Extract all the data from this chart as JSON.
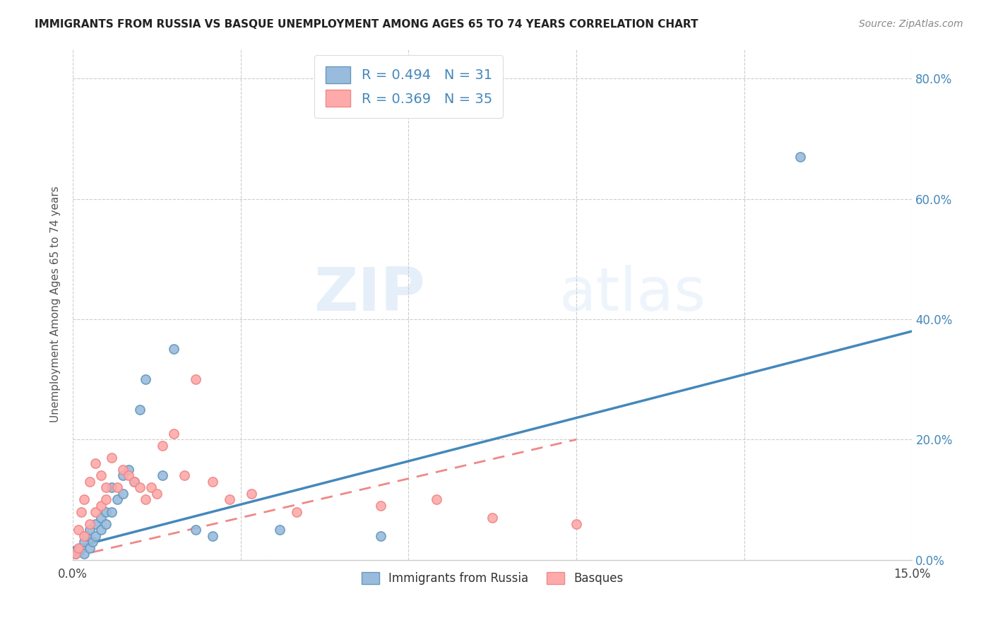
{
  "title": "IMMIGRANTS FROM RUSSIA VS BASQUE UNEMPLOYMENT AMONG AGES 65 TO 74 YEARS CORRELATION CHART",
  "source": "Source: ZipAtlas.com",
  "ylabel": "Unemployment Among Ages 65 to 74 years",
  "xlim": [
    0.0,
    0.15
  ],
  "ylim": [
    0.0,
    0.85
  ],
  "xticks": [
    0.0,
    0.03,
    0.06,
    0.09,
    0.12,
    0.15
  ],
  "xtick_labels": [
    "0.0%",
    "",
    "",
    "",
    "",
    "15.0%"
  ],
  "ytick_labels_right": [
    "0.0%",
    "20.0%",
    "40.0%",
    "60.0%",
    "80.0%"
  ],
  "yticks_right": [
    0.0,
    0.2,
    0.4,
    0.6,
    0.8
  ],
  "legend_r1": "R = 0.494",
  "legend_n1": "N = 31",
  "legend_r2": "R = 0.369",
  "legend_n2": "N = 35",
  "color_blue": "#99BBDD",
  "color_blue_edge": "#6699BB",
  "color_blue_line": "#4488BB",
  "color_pink": "#FFAAAA",
  "color_pink_edge": "#EE8888",
  "color_pink_line": "#EE8888",
  "background_color": "#FFFFFF",
  "watermark_zip": "ZIP",
  "watermark_atlas": "atlas",
  "russia_x": [
    0.0005,
    0.001,
    0.0015,
    0.002,
    0.002,
    0.0025,
    0.003,
    0.003,
    0.0035,
    0.004,
    0.004,
    0.005,
    0.005,
    0.006,
    0.006,
    0.007,
    0.007,
    0.008,
    0.009,
    0.009,
    0.01,
    0.011,
    0.012,
    0.013,
    0.016,
    0.018,
    0.022,
    0.025,
    0.037,
    0.055,
    0.13
  ],
  "russia_y": [
    0.01,
    0.015,
    0.02,
    0.01,
    0.03,
    0.04,
    0.02,
    0.05,
    0.03,
    0.04,
    0.06,
    0.05,
    0.07,
    0.06,
    0.08,
    0.08,
    0.12,
    0.1,
    0.11,
    0.14,
    0.15,
    0.13,
    0.25,
    0.3,
    0.14,
    0.35,
    0.05,
    0.04,
    0.05,
    0.04,
    0.67
  ],
  "basque_x": [
    0.0005,
    0.001,
    0.001,
    0.0015,
    0.002,
    0.002,
    0.003,
    0.003,
    0.004,
    0.004,
    0.005,
    0.005,
    0.006,
    0.006,
    0.007,
    0.008,
    0.009,
    0.01,
    0.011,
    0.012,
    0.013,
    0.014,
    0.015,
    0.016,
    0.018,
    0.02,
    0.022,
    0.025,
    0.028,
    0.032,
    0.04,
    0.055,
    0.065,
    0.075,
    0.09
  ],
  "basque_y": [
    0.01,
    0.02,
    0.05,
    0.08,
    0.04,
    0.1,
    0.06,
    0.13,
    0.08,
    0.16,
    0.09,
    0.14,
    0.1,
    0.12,
    0.17,
    0.12,
    0.15,
    0.14,
    0.13,
    0.12,
    0.1,
    0.12,
    0.11,
    0.19,
    0.21,
    0.14,
    0.3,
    0.13,
    0.1,
    0.11,
    0.08,
    0.09,
    0.1,
    0.07,
    0.06
  ],
  "russia_trend_x": [
    0.0,
    0.15
  ],
  "russia_trend_y": [
    0.02,
    0.38
  ],
  "basque_trend_x": [
    0.0,
    0.09
  ],
  "basque_trend_y": [
    0.005,
    0.2
  ]
}
